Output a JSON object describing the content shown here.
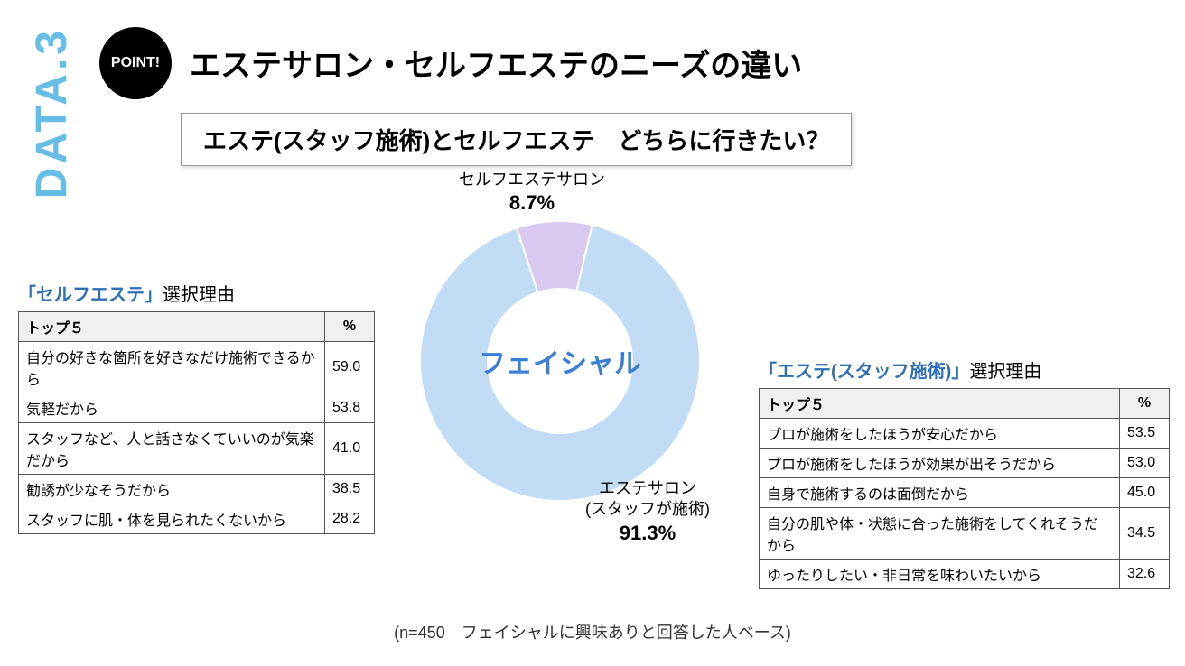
{
  "sidebar": {
    "label": "DATA.3",
    "color": "#66bde6"
  },
  "badge": {
    "text": "POINT!",
    "bg": "#000000",
    "fg": "#ffffff"
  },
  "title": "エステサロン・セルフエステのニーズの違い",
  "subtitle": "エステ(スタッフ施術)とセルフエステ　どちらに行きたい？",
  "donut": {
    "type": "donut",
    "center_label": "フェイシャル",
    "center_color": "#3a7ed6",
    "inner_radius": 80,
    "outer_radius": 155,
    "background": "#ffffff",
    "slices": [
      {
        "name": "セルフエステサロン",
        "value": 8.7,
        "color": "#d9c8ef",
        "label_line1": "セルフエステサロン",
        "pct_label": "8.7%"
      },
      {
        "name": "エステサロン(スタッフが施術)",
        "value": 91.3,
        "color": "#c3dcf6",
        "label_line1": "エステサロン",
        "label_line2": "(スタッフが施術)",
        "pct_label": "91.3%"
      }
    ]
  },
  "left_table": {
    "title_accent": "「セルフエステ」",
    "title_rest": "選択理由",
    "accent_color": "#2f6fb6",
    "header_label": "トップ５",
    "header_pct": "%",
    "rows": [
      {
        "label": "自分の好きな箇所を好きなだけ施術できるから",
        "pct": "59.0"
      },
      {
        "label": "気軽だから",
        "pct": "53.8"
      },
      {
        "label": "スタッフなど、人と話さなくていいのが気楽だから",
        "pct": "41.0"
      },
      {
        "label": "勧誘が少なそうだから",
        "pct": "38.5"
      },
      {
        "label": "スタッフに肌・体を見られたくないから",
        "pct": "28.2"
      }
    ]
  },
  "right_table": {
    "title_accent": "「エステ(スタッフ施術)」",
    "title_rest": "選択理由",
    "accent_color": "#2f6fb6",
    "header_label": "トップ５",
    "header_pct": "%",
    "rows": [
      {
        "label": "プロが施術をしたほうが安心だから",
        "pct": "53.5"
      },
      {
        "label": "プロが施術をしたほうが効果が出そうだから",
        "pct": "53.0"
      },
      {
        "label": "自身で施術するのは面倒だから",
        "pct": "45.0"
      },
      {
        "label": "自分の肌や体・状態に合った施術をしてくれそうだから",
        "pct": "34.5"
      },
      {
        "label": "ゆったりしたい・非日常を味わいたいから",
        "pct": "32.6"
      }
    ]
  },
  "footer": "(n=450　フェイシャルに興味ありと回答した人ベース)"
}
